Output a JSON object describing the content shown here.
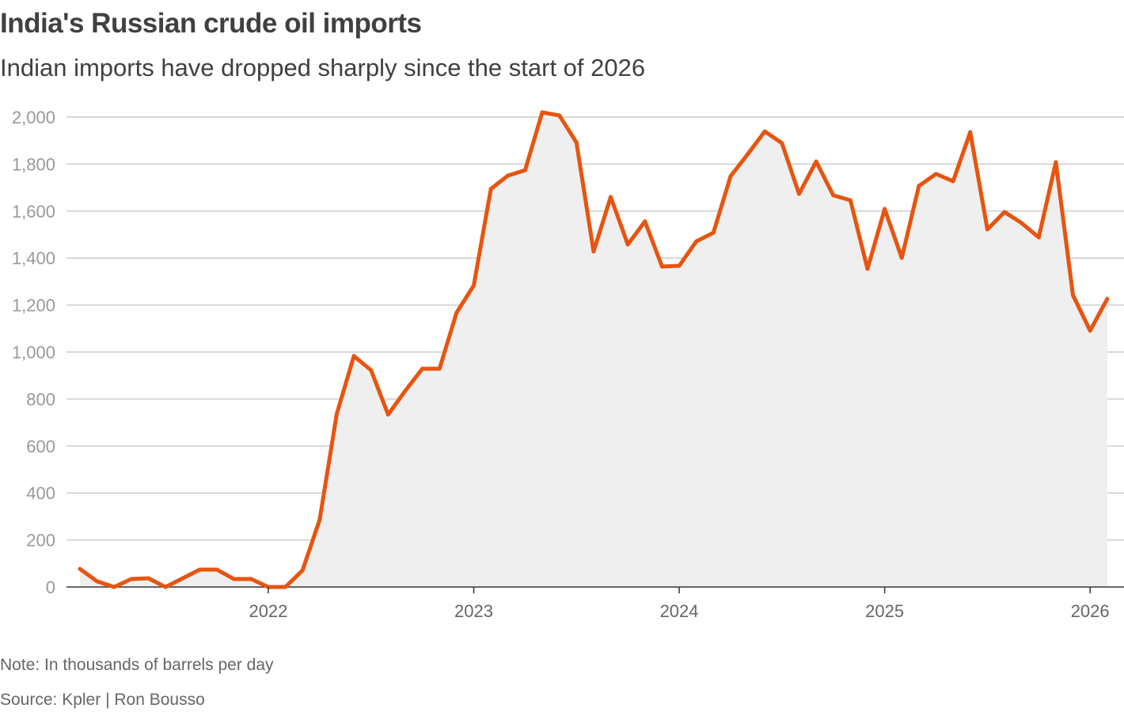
{
  "chart_data": {
    "type": "area",
    "title": "India's Russian crude oil imports",
    "subtitle": "Indian imports have dropped sharply since the start of 2026",
    "note": "Note: In thousands of barrels per day",
    "source": "Source: Kpler | Ron Bousso",
    "xlabel": "",
    "ylabel": "",
    "ylim": [
      0,
      2000
    ],
    "y_ticks": [
      0,
      200,
      400,
      600,
      800,
      1000,
      1200,
      1400,
      1600,
      1800,
      2000
    ],
    "y_tick_labels": [
      "0",
      "200",
      "400",
      "600",
      "800",
      "1,000",
      "1,200",
      "1,400",
      "1,600",
      "1,800",
      "2,000"
    ],
    "x_ticks": [
      "2022",
      "2023",
      "2024",
      "2025",
      "2026"
    ],
    "x_start": "2021-02",
    "grid": true,
    "line_color": "#e8540f",
    "fill_color": "#efefef",
    "values": [
      77,
      24,
      0,
      34,
      37,
      0,
      37,
      74,
      74,
      34,
      34,
      0,
      0,
      71,
      286,
      737,
      983,
      923,
      734,
      835,
      929,
      929,
      1168,
      1283,
      1694,
      1751,
      1774,
      2020,
      2007,
      1892,
      1428,
      1660,
      1458,
      1556,
      1364,
      1367,
      1471,
      1508,
      1748,
      1842,
      1939,
      1889,
      1673,
      1811,
      1667,
      1646,
      1354,
      1609,
      1401,
      1707,
      1758,
      1727,
      1936,
      1522,
      1596,
      1549,
      1488,
      1808,
      1242,
      1091,
      1226
    ]
  }
}
